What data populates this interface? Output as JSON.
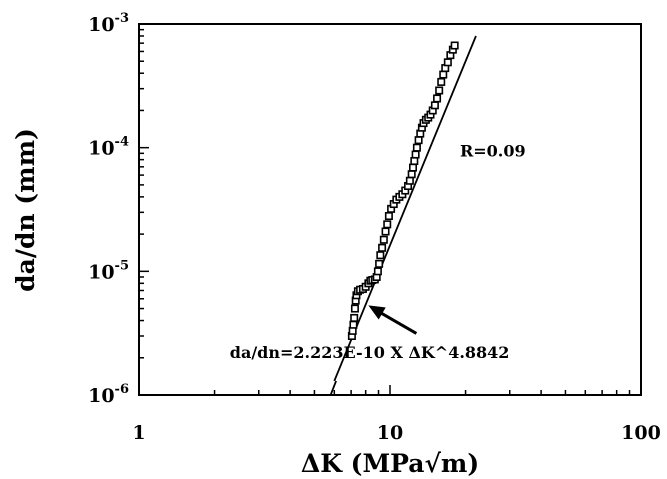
{
  "chart_data": {
    "type": "scatter",
    "title": "",
    "xlabel": "ΔK (MPa√m)",
    "ylabel": "da/dn (mm)",
    "x_scale": "log",
    "y_scale": "log",
    "xlim": [
      1,
      100
    ],
    "ylim": [
      1e-06,
      0.001
    ],
    "grid": false,
    "x_ticks": [
      {
        "value": 1,
        "label": "1"
      },
      {
        "value": 10,
        "label": "10"
      },
      {
        "value": 100,
        "label": "100"
      }
    ],
    "y_ticks": [
      {
        "value": 1e-06,
        "base": "10",
        "exp": "-6"
      },
      {
        "value": 1e-05,
        "base": "10",
        "exp": "-5"
      },
      {
        "value": 0.0001,
        "base": "10",
        "exp": "-4"
      },
      {
        "value": 0.001,
        "base": "10",
        "exp": "-3"
      }
    ],
    "series": [
      {
        "marker": "open-square",
        "points": [
          [
            7.05,
            3e-06
          ],
          [
            7.1,
            3.3e-06
          ],
          [
            7.15,
            3.7e-06
          ],
          [
            7.2,
            4.2e-06
          ],
          [
            7.25,
            5e-06
          ],
          [
            7.3,
            5.8e-06
          ],
          [
            7.35,
            6.4e-06
          ],
          [
            7.45,
            6.9e-06
          ],
          [
            7.6,
            7.1e-06
          ],
          [
            7.8,
            7.2e-06
          ],
          [
            8.0,
            7.5e-06
          ],
          [
            8.2,
            8e-06
          ],
          [
            8.35,
            8.4e-06
          ],
          [
            8.5,
            8.5e-06
          ],
          [
            8.7,
            8.6e-06
          ],
          [
            8.85,
            9e-06
          ],
          [
            8.95,
            1e-05
          ],
          [
            9.05,
            1.15e-05
          ],
          [
            9.15,
            1.35e-05
          ],
          [
            9.3,
            1.55e-05
          ],
          [
            9.45,
            1.8e-05
          ],
          [
            9.6,
            2.1e-05
          ],
          [
            9.75,
            2.4e-05
          ],
          [
            9.9,
            2.8e-05
          ],
          [
            10.1,
            3.2e-05
          ],
          [
            10.35,
            3.5e-05
          ],
          [
            10.6,
            3.8e-05
          ],
          [
            10.9,
            4e-05
          ],
          [
            11.2,
            4.2e-05
          ],
          [
            11.5,
            4.5e-05
          ],
          [
            11.8,
            4.9e-05
          ],
          [
            12.0,
            5.4e-05
          ],
          [
            12.2,
            6.1e-05
          ],
          [
            12.35,
            6.9e-05
          ],
          [
            12.5,
            7.8e-05
          ],
          [
            12.65,
            8.8e-05
          ],
          [
            12.8,
            0.0001
          ],
          [
            13.0,
            0.000115
          ],
          [
            13.2,
            0.00013
          ],
          [
            13.4,
            0.000145
          ],
          [
            13.6,
            0.000158
          ],
          [
            13.9,
            0.000168
          ],
          [
            14.2,
            0.000175
          ],
          [
            14.5,
            0.000185
          ],
          [
            14.8,
            0.0002
          ],
          [
            15.1,
            0.00022
          ],
          [
            15.4,
            0.00025
          ],
          [
            15.7,
            0.00029
          ],
          [
            16.0,
            0.00034
          ],
          [
            16.3,
            0.00039
          ],
          [
            16.6,
            0.00044
          ],
          [
            17.0,
            0.00049
          ],
          [
            17.4,
            0.00056
          ],
          [
            17.8,
            0.00062
          ],
          [
            18.1,
            0.00067
          ]
        ]
      }
    ],
    "fit_lines": [
      {
        "x": [
          6.0,
          22.0
        ],
        "y": [
          1.3e-06,
          0.0008
        ]
      },
      {
        "x": [
          5.8,
          6.1
        ],
        "y": [
          1e-06,
          1.3e-06
        ]
      }
    ],
    "annotations": [
      {
        "text": "R=0.09",
        "x": 19,
        "y": 8.5e-05
      },
      {
        "text": "da/dn=2.223E-10 X ΔK^4.8842",
        "x": 2.3,
        "y": 2e-06,
        "arrow_to": [
          8.2,
          5.3e-06
        ]
      }
    ]
  }
}
